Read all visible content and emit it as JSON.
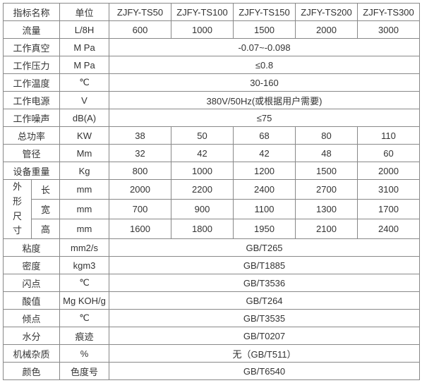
{
  "header": {
    "name": "指标名称",
    "unit": "单位",
    "models": [
      "ZJFY-TS50",
      "ZJFY-TS100",
      "ZJFY-TS150",
      "ZJFY-TS200",
      "ZJFY-TS300"
    ]
  },
  "rows": {
    "flow": {
      "label": "流量",
      "unit": "L/8H",
      "vals": [
        "600",
        "1000",
        "1500",
        "2000",
        "3000"
      ]
    },
    "vacuum": {
      "label": "工作真空",
      "unit": "M Pa",
      "span": "-0.07~-0.098"
    },
    "press": {
      "label": "工作压力",
      "unit": "M Pa",
      "span": "≤0.8"
    },
    "temp": {
      "label": "工作温度",
      "unit": "℃",
      "span": "30-160"
    },
    "power": {
      "label": "工作电源",
      "unit": "V",
      "span": "380V/50Hz(或根据用户需要)"
    },
    "noise": {
      "label": "工作噪声",
      "unit": "dB(A)",
      "span": "≤75"
    },
    "kw": {
      "label": "总功率",
      "unit": "KW",
      "vals": [
        "38",
        "50",
        "68",
        "80",
        "110"
      ]
    },
    "pipe": {
      "label": "管径",
      "unit": "Mm",
      "vals": [
        "32",
        "42",
        "42",
        "48",
        "60"
      ]
    },
    "weight": {
      "label": "设备重量",
      "unit": "Kg",
      "vals": [
        "800",
        "1000",
        "1200",
        "1500",
        "2000"
      ]
    },
    "dims": {
      "label": "外形尺寸",
      "len": {
        "sub": "长",
        "unit": "mm",
        "vals": [
          "2000",
          "2200",
          "2400",
          "2700",
          "3100"
        ]
      },
      "wid": {
        "sub": "宽",
        "unit": "mm",
        "vals": [
          "700",
          "900",
          "1100",
          "1300",
          "1700"
        ]
      },
      "hgt": {
        "sub": "高",
        "unit": "mm",
        "vals": [
          "1600",
          "1800",
          "1950",
          "2100",
          "2400"
        ]
      }
    },
    "visc": {
      "label": "粘度",
      "unit": "mm2/s",
      "span": "GB/T265"
    },
    "dens": {
      "label": "密度",
      "unit": "kgm3",
      "span": "GB/T1885"
    },
    "flash": {
      "label": "闪点",
      "unit": "℃",
      "span": "GB/T3536"
    },
    "acid": {
      "label": "酸值",
      "unit": "Mg KOH/g",
      "span": "GB/T264"
    },
    "pour": {
      "label": "倾点",
      "unit": "℃",
      "span": "GB/T3535"
    },
    "water": {
      "label": "水分",
      "unit": "痕迹",
      "span": "GB/T0207"
    },
    "mech": {
      "label": "机械杂质",
      "unit": "%",
      "span": "无（GB/T511）"
    },
    "color": {
      "label": "颜色",
      "unit": "色度号",
      "span": "GB/T6540"
    }
  },
  "style": {
    "border_color": "#888888",
    "font_size": 13,
    "text_color": "#333333",
    "bg": "#ffffff"
  }
}
